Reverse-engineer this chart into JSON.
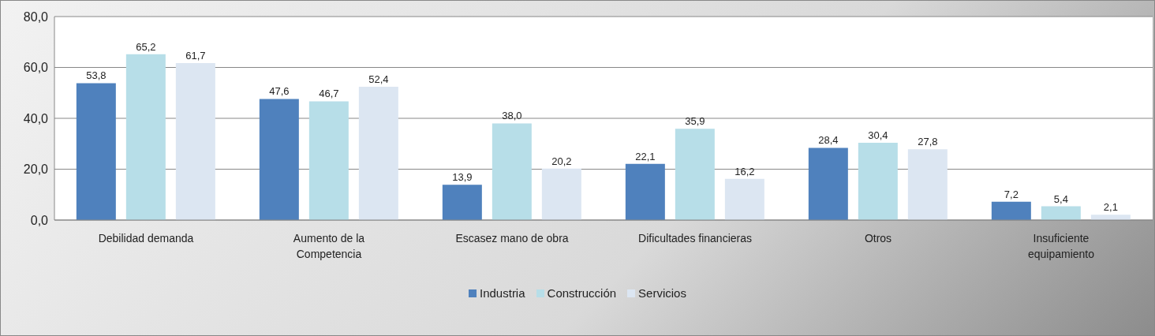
{
  "chart_data": {
    "type": "bar",
    "categories": [
      "Debilidad demanda",
      "Aumento de la Competencia",
      "Escasez mano de obra",
      "Dificultades financieras",
      "Otros",
      "Insuficiente equipamiento"
    ],
    "series": [
      {
        "name": "Industria",
        "color": "#4f81bd",
        "values": [
          53.8,
          47.6,
          13.9,
          22.1,
          28.4,
          7.2
        ],
        "value_labels": [
          "53,8",
          "47,6",
          "13,9",
          "22,1",
          "28,4",
          "7,2"
        ]
      },
      {
        "name": "Construcción",
        "color": "#b7dee8",
        "values": [
          65.2,
          46.7,
          38.0,
          35.9,
          30.4,
          5.4
        ],
        "value_labels": [
          "65,2",
          "46,7",
          "38,0",
          "35,9",
          "30,4",
          "5,4"
        ]
      },
      {
        "name": "Servicios",
        "color": "#dce6f2",
        "values": [
          61.7,
          52.4,
          20.2,
          16.2,
          27.8,
          2.1
        ],
        "value_labels": [
          "61,7",
          "52,4",
          "20,2",
          "16,2",
          "27,8",
          "2,1"
        ]
      }
    ],
    "ylim": [
      0,
      80
    ],
    "yticks": [
      {
        "value": 0,
        "label": "0,0"
      },
      {
        "value": 20,
        "label": "20,0"
      },
      {
        "value": 40,
        "label": "40,0"
      },
      {
        "value": 60,
        "label": "60,0"
      },
      {
        "value": 80,
        "label": "80,0"
      }
    ],
    "grid": "y",
    "legend": "bottom"
  }
}
